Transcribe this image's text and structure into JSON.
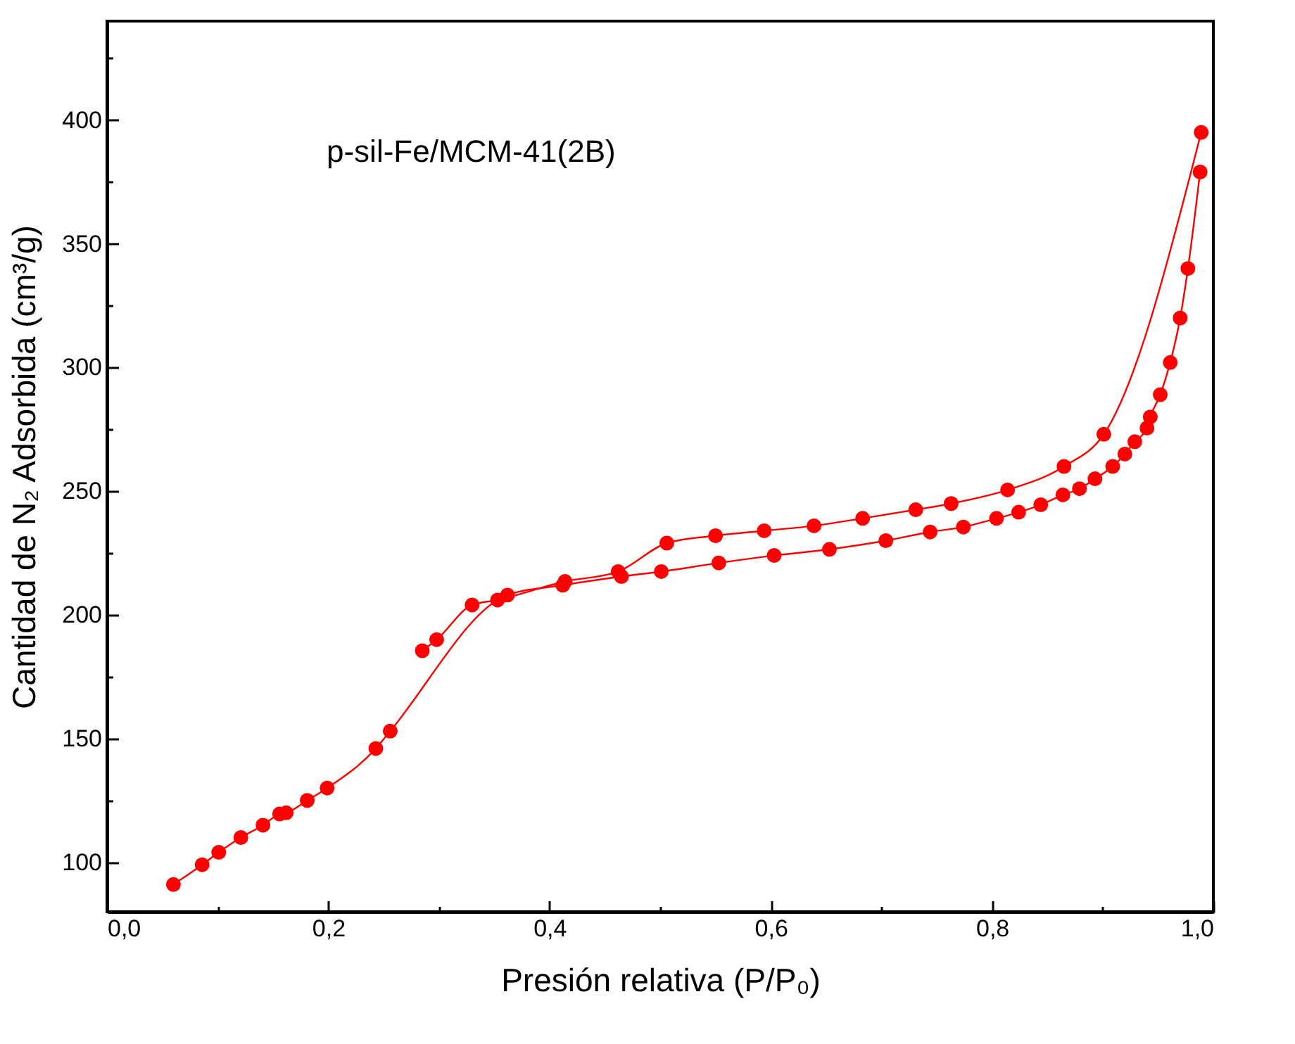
{
  "chart_data": {
    "type": "line",
    "xlabel": "Presión relativa (P/P₀)",
    "ylabel": "Cantidad de N₂ Adsorbida (cm³/g)",
    "annotations": [
      "p-sil-Fe/MCM-41(2B)"
    ],
    "xlim": [
      0,
      1
    ],
    "ylim": [
      80,
      440
    ],
    "xticks": [
      {
        "value": 0,
        "label": "0,0"
      },
      {
        "value": 0.1,
        "label": null
      },
      {
        "value": 0.2,
        "label": "0,2"
      },
      {
        "value": 0.3,
        "label": null
      },
      {
        "value": 0.4,
        "label": "0,4"
      },
      {
        "value": 0.5,
        "label": null
      },
      {
        "value": 0.6,
        "label": "0,6"
      },
      {
        "value": 0.7,
        "label": null
      },
      {
        "value": 0.8,
        "label": "0,8"
      },
      {
        "value": 0.9,
        "label": null
      },
      {
        "value": 1,
        "label": "1,0"
      }
    ],
    "yticks": [
      100,
      {
        "value": 125,
        "label": null
      },
      150,
      {
        "value": 175,
        "label": null
      },
      200,
      {
        "value": 225,
        "label": null
      },
      250,
      {
        "value": 275,
        "label": null
      },
      300,
      {
        "value": 325,
        "label": null
      },
      350,
      {
        "value": 375,
        "label": null
      },
      400,
      {
        "value": 425,
        "label": null
      }
    ],
    "marker": "circle",
    "line_style": "solid",
    "series": [
      {
        "color": "#ff0000",
        "x": [
          0.06,
          0.086,
          0.101,
          0.121,
          0.141,
          0.156,
          0.162,
          0.181,
          0.199,
          0.243,
          0.256,
          0.362,
          0.412,
          0.465,
          0.501,
          0.553,
          0.603,
          0.653,
          0.704,
          0.744,
          0.774,
          0.804,
          0.824,
          0.844,
          0.864,
          0.879,
          0.893,
          0.909,
          0.92,
          0.929,
          0.94,
          0.943,
          0.952,
          0.961,
          0.97,
          0.977,
          0.988
        ],
        "values": [
          91,
          99,
          104,
          110,
          115,
          119.5,
          120,
          125,
          130,
          146,
          153,
          208,
          212,
          215.5,
          217.5,
          221,
          224,
          226.5,
          230,
          233.5,
          235.5,
          239,
          241.5,
          244.5,
          248.5,
          251,
          255,
          260,
          265,
          270,
          275.5,
          280,
          289,
          302,
          320,
          340,
          379
        ]
      },
      {
        "color": "#ff0000",
        "x": [
          0.285,
          0.298,
          0.33,
          0.353,
          0.414,
          0.462,
          0.506,
          0.55,
          0.594,
          0.639,
          0.683,
          0.731,
          0.763,
          0.814,
          0.865,
          0.901,
          0.989
        ],
        "values": [
          185.5,
          190,
          204,
          206,
          213.5,
          217.5,
          229,
          232,
          234,
          236,
          239,
          242.5,
          245,
          250.5,
          260,
          273,
          395
        ]
      }
    ]
  }
}
